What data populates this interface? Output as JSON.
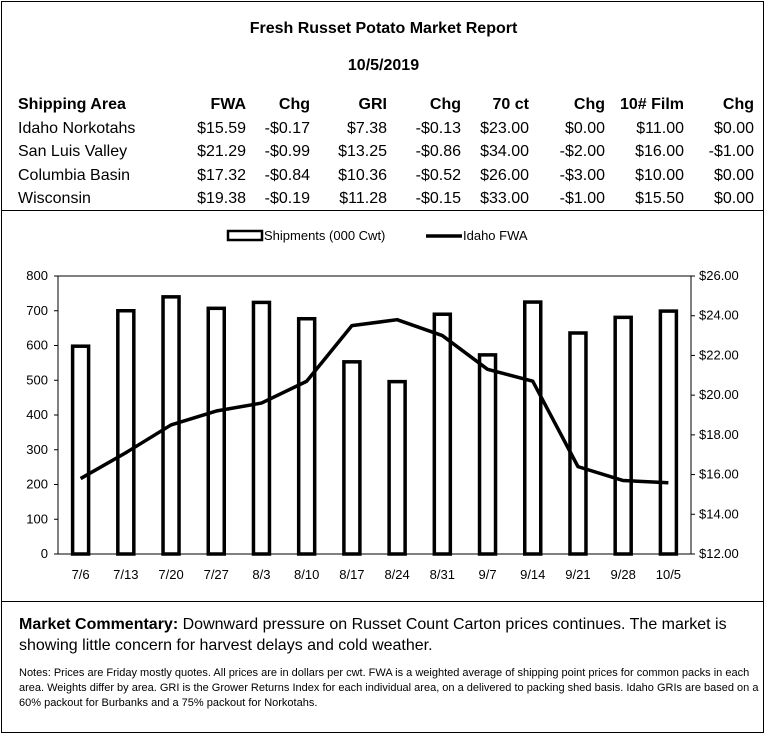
{
  "report": {
    "title": "Fresh Russet Potato Market Report",
    "date": "10/5/2019"
  },
  "table": {
    "headers": [
      "Shipping Area",
      "FWA",
      "Chg",
      "GRI",
      "Chg",
      "70 ct",
      "Chg",
      "10# Film",
      "Chg"
    ],
    "rows": [
      [
        "Idaho Norkotahs",
        "$15.59",
        "-$0.17",
        "$7.38",
        "-$0.13",
        "$23.00",
        "$0.00",
        "$11.00",
        "$0.00"
      ],
      [
        "San Luis Valley",
        "$21.29",
        "-$0.99",
        "$13.25",
        "-$0.86",
        "$34.00",
        "-$2.00",
        "$16.00",
        "-$1.00"
      ],
      [
        "Columbia Basin",
        "$17.32",
        "-$0.84",
        "$10.36",
        "-$0.52",
        "$26.00",
        "-$3.00",
        "$10.00",
        "$0.00"
      ],
      [
        "Wisconsin",
        "$19.38",
        "-$0.19",
        "$11.28",
        "-$0.15",
        "$33.00",
        "-$1.00",
        "$15.50",
        "$0.00"
      ]
    ]
  },
  "chart_data": {
    "type": "bar",
    "categories": [
      "7/6",
      "7/13",
      "7/20",
      "7/27",
      "8/3",
      "8/10",
      "8/17",
      "8/24",
      "8/31",
      "9/7",
      "9/14",
      "9/21",
      "9/28",
      "10/5"
    ],
    "series": [
      {
        "name": "Shipments (000 Cwt)",
        "type": "bar",
        "axis": "left",
        "values": [
          598,
          700,
          740,
          707,
          724,
          677,
          553,
          496,
          690,
          573,
          725,
          636,
          681,
          699
        ]
      },
      {
        "name": "Idaho FWA",
        "type": "line",
        "axis": "right",
        "values": [
          15.8,
          17.1,
          18.5,
          19.2,
          19.6,
          20.7,
          23.5,
          23.8,
          23.0,
          21.3,
          20.7,
          16.4,
          15.7,
          15.59
        ]
      }
    ],
    "left_axis": {
      "ylim": [
        0,
        800
      ],
      "ticks": [
        "0",
        "100",
        "200",
        "300",
        "400",
        "500",
        "600",
        "700",
        "800"
      ]
    },
    "right_axis": {
      "ylim": [
        12,
        26
      ],
      "ticks": [
        "$12.00",
        "$14.00",
        "$16.00",
        "$18.00",
        "$20.00",
        "$22.00",
        "$24.00",
        "$26.00"
      ]
    },
    "legend": {
      "position": "top-center"
    },
    "grid": false
  },
  "commentary": {
    "label": "Market Commentary:",
    "text": "Downward pressure on Russet Count Carton prices continues. The market is showing little concern for harvest delays and cold weather."
  },
  "notes": "Notes: Prices are Friday mostly quotes. All prices are in dollars per cwt. FWA is a weighted average of shipping point prices for common packs in each area. Weights differ by area. GRI is the Grower Returns Index for each individual area, on a delivered to packing shed basis. Idaho GRIs are based on a 60% packout for Burbanks and a 75% packout for Norkotahs."
}
